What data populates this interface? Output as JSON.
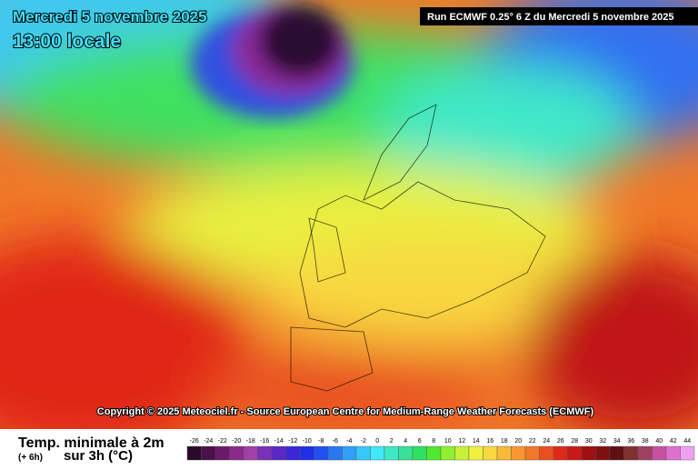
{
  "header": {
    "date": "Mercredi 5 novembre 2025",
    "time": "13:00 locale",
    "run": "Run ECMWF 0.25° 6 Z du Mercredi 5 novembre 2025"
  },
  "copyright": "Copyright © 2025 Meteociel.fr - Source European Centre for Medium-Range Weather Forecasts (ECMWF)",
  "footer": {
    "title": "Temp. minimale à 2m",
    "lead": "(+ 6h)",
    "subtitle": "sur 3h (°C)"
  },
  "legend": {
    "items": [
      {
        "value": -26,
        "color": "#2a0a28"
      },
      {
        "value": -24,
        "color": "#4a1048"
      },
      {
        "value": -22,
        "color": "#6a1a6a"
      },
      {
        "value": -20,
        "color": "#8a2a8a"
      },
      {
        "value": -18,
        "color": "#a040a8"
      },
      {
        "value": -16,
        "color": "#7a30b8"
      },
      {
        "value": -14,
        "color": "#5a28c8"
      },
      {
        "value": -12,
        "color": "#3a28d8"
      },
      {
        "value": -10,
        "color": "#2030e8"
      },
      {
        "value": -8,
        "color": "#2050f0"
      },
      {
        "value": -6,
        "color": "#2878f0"
      },
      {
        "value": -4,
        "color": "#30a0f8"
      },
      {
        "value": -2,
        "color": "#38c8f8"
      },
      {
        "value": 0,
        "color": "#40e8f8"
      },
      {
        "value": 2,
        "color": "#40e8c8"
      },
      {
        "value": 4,
        "color": "#38e098"
      },
      {
        "value": 6,
        "color": "#30e060"
      },
      {
        "value": 8,
        "color": "#50e830"
      },
      {
        "value": 10,
        "color": "#90f030"
      },
      {
        "value": 12,
        "color": "#c8f038"
      },
      {
        "value": 14,
        "color": "#f0f040"
      },
      {
        "value": 16,
        "color": "#f8d840"
      },
      {
        "value": 18,
        "color": "#f8b838"
      },
      {
        "value": 20,
        "color": "#f89830"
      },
      {
        "value": 22,
        "color": "#f07828"
      },
      {
        "value": 24,
        "color": "#e85020"
      },
      {
        "value": 26,
        "color": "#e02818"
      },
      {
        "value": 28,
        "color": "#c81818"
      },
      {
        "value": 30,
        "color": "#a01010"
      },
      {
        "value": 32,
        "color": "#801010"
      },
      {
        "value": 34,
        "color": "#601010"
      },
      {
        "value": 36,
        "color": "#803030"
      },
      {
        "value": 38,
        "color": "#a04060"
      },
      {
        "value": 40,
        "color": "#c850a0"
      },
      {
        "value": 42,
        "color": "#e070d0"
      },
      {
        "value": 44,
        "color": "#f0a0f0"
      }
    ]
  }
}
